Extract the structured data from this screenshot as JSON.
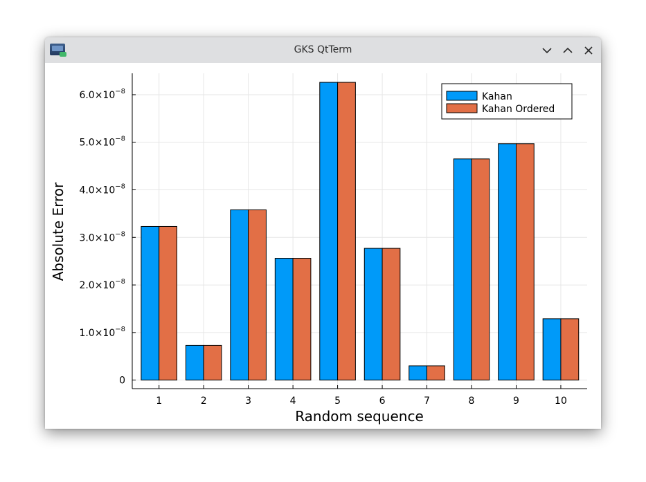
{
  "window": {
    "title": "GKS QtTerm",
    "app_icon": "terminal-app-icon",
    "controls": {
      "minimize": "chevron-down-icon",
      "maximize": "chevron-up-icon",
      "close": "close-icon"
    }
  },
  "chart_data": {
    "type": "bar",
    "title": "",
    "xlabel": "Random sequence",
    "ylabel": "Absolute Error",
    "categories": [
      "1",
      "2",
      "3",
      "4",
      "5",
      "6",
      "7",
      "8",
      "9",
      "10"
    ],
    "series": [
      {
        "name": "Kahan",
        "color": "#009af9",
        "values": [
          3.23e-08,
          7.3e-09,
          3.58e-08,
          2.56e-08,
          6.26e-08,
          2.77e-08,
          3e-09,
          4.65e-08,
          4.97e-08,
          1.29e-08
        ]
      },
      {
        "name": "Kahan Ordered",
        "color": "#e26f46",
        "values": [
          3.23e-08,
          7.3e-09,
          3.58e-08,
          2.56e-08,
          6.26e-08,
          2.77e-08,
          3e-09,
          4.65e-08,
          4.97e-08,
          1.29e-08
        ]
      }
    ],
    "ylim": [
      -1.8e-09,
      6.45e-08
    ],
    "yticks": [
      {
        "value": 0,
        "mantissa": "0",
        "exponent": ""
      },
      {
        "value": 1e-08,
        "mantissa": "1.0×10",
        "exponent": "−8"
      },
      {
        "value": 2e-08,
        "mantissa": "2.0×10",
        "exponent": "−8"
      },
      {
        "value": 3e-08,
        "mantissa": "3.0×10",
        "exponent": "−8"
      },
      {
        "value": 4e-08,
        "mantissa": "4.0×10",
        "exponent": "−8"
      },
      {
        "value": 5e-08,
        "mantissa": "5.0×10",
        "exponent": "−8"
      },
      {
        "value": 6e-08,
        "mantissa": "6.0×10",
        "exponent": "−8"
      }
    ],
    "grid": true,
    "legend": "top-right"
  }
}
